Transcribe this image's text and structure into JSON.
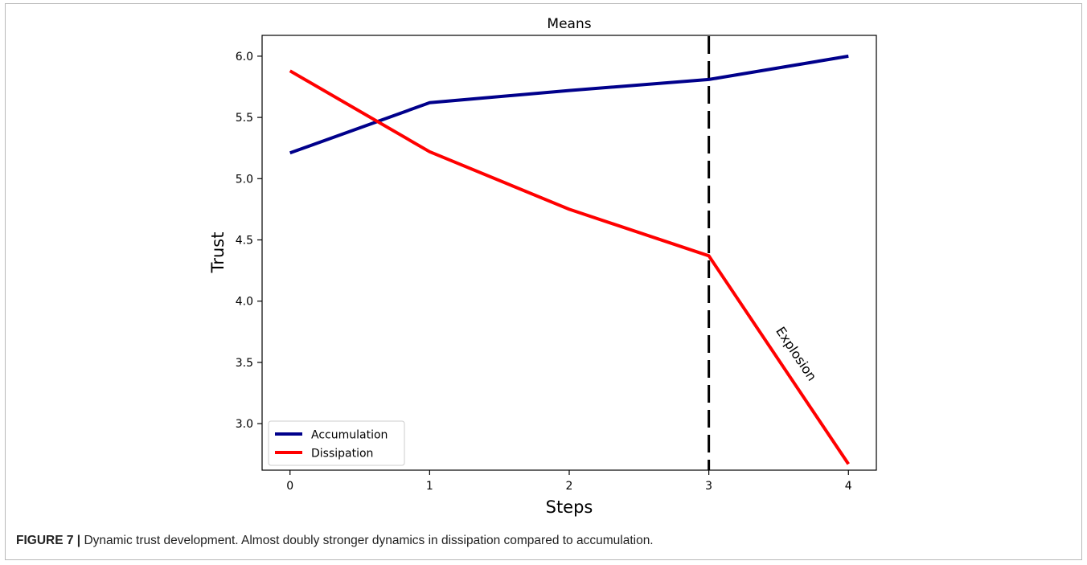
{
  "chart_data": {
    "type": "line",
    "title": "Means",
    "xlabel": "Steps",
    "ylabel": "Trust",
    "x": [
      0,
      1,
      2,
      3,
      4
    ],
    "xlim": [
      -0.2,
      4.2
    ],
    "ylim": [
      2.62,
      6.17
    ],
    "xticks": [
      0,
      1,
      2,
      3,
      4
    ],
    "yticks": [
      3.0,
      3.5,
      4.0,
      4.5,
      5.0,
      5.5,
      6.0
    ],
    "ytick_labels": [
      "3.0",
      "3.5",
      "4.0",
      "4.5",
      "5.0",
      "5.5",
      "6.0"
    ],
    "grid": false,
    "legend_position": "lower-left",
    "series": [
      {
        "name": "Accumulation",
        "color": "#00008b",
        "values": [
          5.21,
          5.62,
          5.72,
          5.81,
          6.0
        ]
      },
      {
        "name": "Dissipation",
        "color": "#ff0000",
        "values": [
          5.88,
          5.22,
          4.75,
          4.37,
          2.67
        ]
      }
    ],
    "vline": {
      "x": 3,
      "style": "dashed",
      "color": "#000000"
    },
    "annotation": {
      "text": "Explosion",
      "x": 3.6,
      "y": 3.55
    }
  },
  "caption": {
    "label": "FIGURE 7 |",
    "text": " Dynamic trust development. Almost doubly stronger dynamics in dissipation compared to accumulation."
  }
}
